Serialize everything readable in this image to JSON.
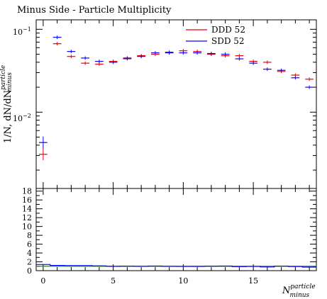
{
  "title": "Minus Side - Particle Multiplicity",
  "chart_data": [
    {
      "type": "scatter",
      "title": "Minus Side - Particle Multiplicity",
      "ylabel": "1/N, dN/dN",
      "ylabel_sup": "particle",
      "ylabel_sub": "minus",
      "xlim": [
        -0.5,
        19.5
      ],
      "ylim": [
        0.0012,
        0.13
      ],
      "yscale": "log",
      "y_ticks": [
        {
          "base": "10",
          "exp": "−2",
          "value": 0.01
        },
        {
          "base": "10",
          "exp": "−1",
          "value": 0.1
        }
      ],
      "legend_position": "top-right",
      "series": [
        {
          "name": "DDD 52",
          "color": "#e8000b",
          "x": [
            0,
            1,
            2,
            3,
            4,
            5,
            6,
            7,
            8,
            9,
            10,
            11,
            12,
            13,
            14,
            15,
            16,
            17,
            18,
            19
          ],
          "y": [
            0.0031,
            0.067,
            0.047,
            0.039,
            0.038,
            0.041,
            0.044,
            0.048,
            0.05,
            0.053,
            0.055,
            0.054,
            0.05,
            0.048,
            0.048,
            0.041,
            0.04,
            0.031,
            0.028,
            0.025
          ]
        },
        {
          "name": "SDD 52",
          "color": "#0a00ff",
          "x": [
            0,
            1,
            2,
            3,
            4,
            5,
            6,
            7,
            8,
            9,
            10,
            11,
            12,
            13,
            14,
            15,
            16,
            17,
            18,
            19
          ],
          "y": [
            0.0043,
            0.08,
            0.054,
            0.045,
            0.041,
            0.04,
            0.045,
            0.047,
            0.052,
            0.052,
            0.052,
            0.052,
            0.051,
            0.05,
            0.044,
            0.039,
            0.033,
            0.032,
            0.026,
            0.02
          ]
        }
      ]
    },
    {
      "type": "line",
      "xlabel": "N",
      "xlabel_sup": "particle",
      "xlabel_sub": "minus",
      "xlim": [
        -0.5,
        19.5
      ],
      "ylim": [
        0,
        18.6
      ],
      "y_ticks": [
        0,
        2,
        4,
        6,
        8,
        10,
        12,
        14,
        16,
        18
      ],
      "x_ticks": [
        0,
        5,
        10,
        15
      ],
      "series": [
        {
          "color": "#00a000",
          "x": [
            0,
            1,
            2,
            3,
            4,
            5,
            6,
            7,
            8,
            9,
            10,
            11,
            12,
            13,
            14,
            15,
            16,
            17,
            18,
            19
          ],
          "y": [
            1.0,
            1.0,
            1.0,
            1.0,
            1.0,
            1.0,
            1.0,
            1.0,
            1.0,
            1.0,
            1.0,
            1.0,
            1.0,
            1.0,
            1.0,
            1.0,
            1.0,
            1.0,
            1.0,
            1.0
          ]
        },
        {
          "color": "#0a00ff",
          "x": [
            0,
            1,
            2,
            3,
            4,
            5,
            6,
            7,
            8,
            9,
            10,
            11,
            12,
            13,
            14,
            15,
            16,
            17,
            18,
            19
          ],
          "y": [
            1.39,
            1.19,
            1.15,
            1.15,
            1.08,
            0.98,
            1.02,
            0.98,
            1.04,
            0.98,
            0.95,
            0.96,
            1.02,
            1.04,
            0.92,
            0.95,
            0.83,
            1.03,
            0.93,
            0.8
          ]
        }
      ]
    }
  ]
}
